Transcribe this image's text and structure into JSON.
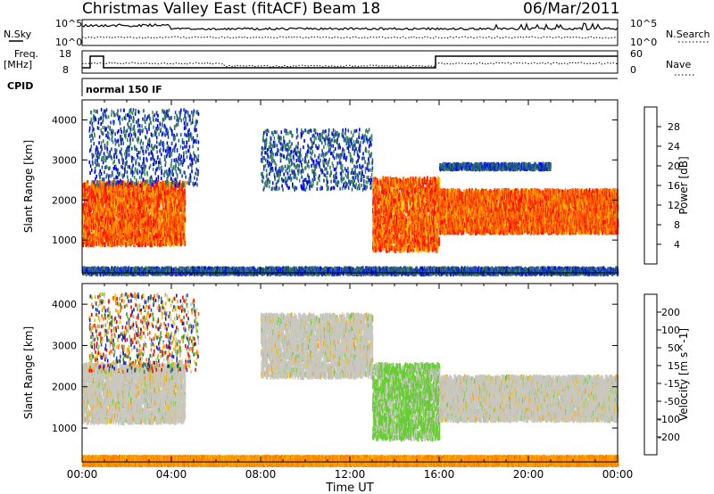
{
  "header": {
    "title": "Christmas Valley East (fitACF)",
    "beam": "Beam 18",
    "date": "06/Mar/2011"
  },
  "status_panels": {
    "nsky_label": "N.Sky",
    "nsearch_label": "N.Search",
    "nsky_ticks": [
      "10^5",
      "10^0"
    ],
    "nsearch_ticks": [
      "10^5",
      "10^0"
    ],
    "freq_label": "Freq.",
    "freq_unit": "[MHz]",
    "freq_ticks": [
      "18",
      "8"
    ],
    "nave_label": "Nave",
    "nave_ticks": [
      "60",
      "0"
    ],
    "cpid_label": "CPID",
    "cpid_value": "normal 150 IF"
  },
  "x_axis": {
    "label": "Time UT",
    "ticks": [
      "00:00",
      "04:00",
      "08:00",
      "12:00",
      "16:00",
      "20:00",
      "00:00"
    ]
  },
  "chart_data": [
    {
      "type": "heatmap",
      "name": "power",
      "x": [
        "00:00",
        "04:00",
        "08:00",
        "12:00",
        "16:00",
        "20:00",
        "00:00"
      ],
      "xlabel": "Time UT",
      "ylabel": "Slant Range [km]",
      "ylim": [
        180,
        4500
      ],
      "yticks": [
        1000,
        2000,
        3000,
        4000
      ],
      "colorbar": {
        "label": "Power [dB]",
        "ticks": [
          "28",
          "24",
          "20",
          "16",
          "12",
          "8",
          "4"
        ],
        "colors": [
          "#0000ff",
          "#1d3fa8",
          "#2e6b78",
          "#3f8f55",
          "#7fbf3f",
          "#ffc000",
          "#ff9000",
          "#ff6000",
          "#ff2000",
          "#ff0000"
        ]
      },
      "regions": [
        {
          "t0": 0.0,
          "t1": 4.6,
          "r0": 950,
          "r1": 2500,
          "level": "high"
        },
        {
          "t0": 0.3,
          "t1": 5.2,
          "r0": 2400,
          "r1": 4300,
          "level": "low"
        },
        {
          "t0": 8.0,
          "t1": 13.0,
          "r0": 2300,
          "r1": 3800,
          "level": "low"
        },
        {
          "t0": 13.0,
          "t1": 16.0,
          "r0": 800,
          "r1": 2600,
          "level": "high"
        },
        {
          "t0": 16.0,
          "t1": 24.0,
          "r0": 1250,
          "r1": 2300,
          "level": "high"
        },
        {
          "t0": 16.0,
          "t1": 21.0,
          "r0": 2800,
          "r1": 2950,
          "level": "low"
        },
        {
          "t0": 0.0,
          "t1": 24.0,
          "r0": 180,
          "r1": 350,
          "level": "low"
        }
      ]
    },
    {
      "type": "heatmap",
      "name": "velocity",
      "x": [
        "00:00",
        "04:00",
        "08:00",
        "12:00",
        "16:00",
        "20:00",
        "00:00"
      ],
      "xlabel": "Time UT",
      "ylabel": "Slant Range [km]",
      "ylim": [
        180,
        4500
      ],
      "yticks": [
        1000,
        2000,
        3000,
        4000
      ],
      "colorbar": {
        "label": "Velocity [m s^-1]",
        "ticks": [
          "200",
          "100",
          "50",
          "15",
          "-15",
          "-50",
          "-100",
          "-200"
        ],
        "colors": [
          "#2020a0",
          "#3040d0",
          "#2f7f3f",
          "#66cc33",
          "#c8c8c0",
          "#f2c000",
          "#ff9a00",
          "#ff6000",
          "#ff0000"
        ]
      },
      "regions": [
        {
          "t0": 0.0,
          "t1": 4.6,
          "r0": 1200,
          "r1": 2600,
          "level": "gray"
        },
        {
          "t0": 0.3,
          "t1": 5.2,
          "r0": 2400,
          "r1": 4300,
          "level": "mixed"
        },
        {
          "t0": 8.0,
          "t1": 13.0,
          "r0": 2300,
          "r1": 3800,
          "level": "gray"
        },
        {
          "t0": 13.0,
          "t1": 16.0,
          "r0": 800,
          "r1": 2600,
          "level": "green"
        },
        {
          "t0": 16.0,
          "t1": 24.0,
          "r0": 1250,
          "r1": 2300,
          "level": "gray"
        },
        {
          "t0": 0.0,
          "t1": 24.0,
          "r0": 180,
          "r1": 350,
          "level": "orange"
        }
      ]
    }
  ]
}
